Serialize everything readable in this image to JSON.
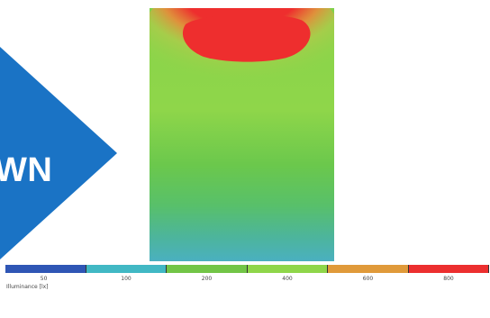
{
  "arrow": {
    "text": "WN",
    "color": "#1a73c5"
  },
  "heatmap": {
    "hot_color": "#ee2e2e",
    "warm_color": "#e98a3a",
    "mid_color": "#8fd64a",
    "cool_color": "#4ab0c0"
  },
  "legend": {
    "title": "Illuminance [lx]",
    "segments": [
      {
        "color": "#2f56b5",
        "label": "50"
      },
      {
        "color": "#41b8c4",
        "label": "100"
      },
      {
        "color": "#72c547",
        "label": "200"
      },
      {
        "color": "#8fd64a",
        "label": "400"
      },
      {
        "color": "#e09a3a",
        "label": "600"
      },
      {
        "color": "#ec2f2f",
        "label": "800"
      }
    ]
  }
}
